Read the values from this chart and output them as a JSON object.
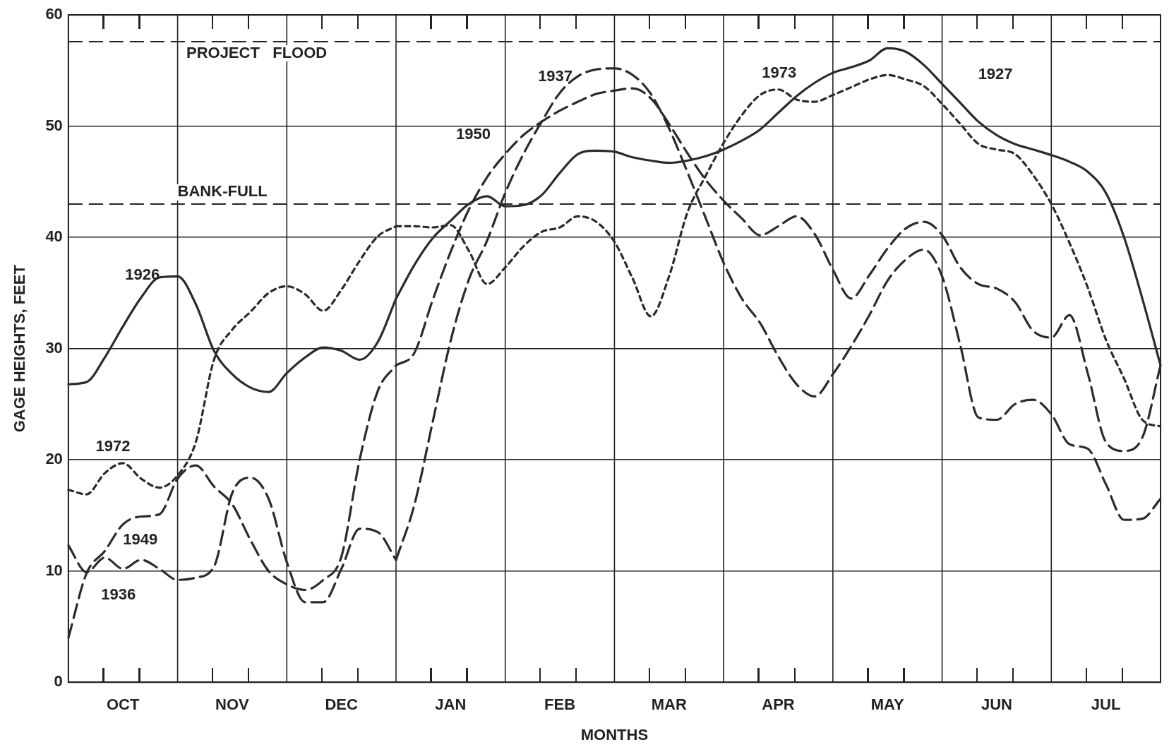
{
  "chart_data": {
    "type": "line",
    "xlabel": "MONTHS",
    "ylabel": "GAGE HEIGHTS, FEET",
    "ylim": [
      0,
      60
    ],
    "yticks": [
      0,
      10,
      20,
      30,
      40,
      50,
      60
    ],
    "categories": [
      null,
      null,
      null,
      "OCT",
      null,
      null,
      null,
      null,
      null,
      "NOV",
      null,
      null,
      null,
      null,
      null,
      "DEC",
      null,
      null,
      null,
      null,
      null,
      "JAN",
      null,
      null,
      null,
      null,
      null,
      "FEB",
      null,
      null,
      null,
      null,
      null,
      "MAR",
      null,
      null,
      null,
      null,
      null,
      "APR",
      null,
      null,
      null,
      null,
      null,
      "MAY",
      null,
      null,
      null,
      null,
      null,
      "JUN",
      null,
      null,
      null,
      null,
      null,
      "JUL",
      null,
      null,
      null
    ],
    "grid": true,
    "ref_lines": [
      {
        "axis": "y",
        "value": 57.6,
        "label": "PROJECT   FLOOD",
        "line_style": "dashed"
      },
      {
        "axis": "y",
        "value": 43,
        "label": "BANK-FULL",
        "line_style": "dashed"
      }
    ],
    "series": [
      {
        "name": "1926",
        "color": "#2b2b2b",
        "line_style": "solid",
        "values": [
          26.8,
          27.0,
          29.2,
          32.0,
          34.6,
          36.4,
          36.5,
          34.0,
          29.8,
          27.7,
          26.5,
          26.1,
          27.8,
          29.2,
          30.1,
          29.8,
          29.0,
          30.6,
          34.5,
          null,
          null,
          null,
          null,
          null,
          null,
          null,
          null,
          null,
          null,
          null,
          null,
          null,
          null,
          null,
          null,
          null,
          null,
          null,
          null,
          null,
          null,
          null,
          null,
          null,
          null,
          null,
          null,
          null,
          null,
          null,
          null,
          null,
          null,
          null,
          null,
          null,
          null,
          null,
          null,
          null,
          null
        ]
      },
      {
        "name": "1927",
        "color": "#2b2b2b",
        "line_style": "solid",
        "values": [
          null,
          null,
          null,
          null,
          null,
          null,
          null,
          null,
          null,
          null,
          null,
          null,
          null,
          null,
          null,
          null,
          null,
          null,
          34.5,
          37.5,
          39.9,
          41.5,
          43.0,
          43.7,
          42.8,
          42.9,
          43.8,
          45.8,
          47.5,
          47.8,
          47.7,
          47.2,
          46.9,
          46.7,
          46.9,
          47.3,
          47.9,
          48.7,
          49.7,
          51.2,
          52.7,
          53.9,
          54.8,
          55.3,
          55.9,
          57.0,
          56.7,
          55.5,
          53.8,
          52.1,
          50.4,
          49.2,
          48.4,
          47.9,
          47.4,
          46.8,
          45.9,
          44.0,
          40.0,
          34.5,
          28.5
        ]
      },
      {
        "name": "1936",
        "color": "#2b2b2b",
        "line_style": "dashed",
        "values": [
          12.3,
          9.9,
          11.2,
          10.2,
          11.0,
          10.2,
          9.2,
          9.4,
          10.4,
          17.0,
          18.4,
          16.5,
          10.8,
          7.2,
          7.2,
          10.2,
          13.8,
          13.5,
          11.0,
          null,
          null,
          null,
          null,
          null,
          null,
          null,
          null,
          null,
          null,
          null,
          null,
          null,
          null,
          null,
          null,
          null,
          null,
          null,
          null,
          null,
          null,
          null,
          null,
          null,
          null,
          null,
          null,
          null,
          null,
          null,
          null,
          null,
          null,
          null,
          null,
          null,
          null,
          null,
          null,
          null,
          null
        ]
      },
      {
        "name": "1937",
        "color": "#2b2b2b",
        "line_style": "dashed",
        "values": [
          null,
          null,
          null,
          null,
          null,
          null,
          null,
          null,
          null,
          null,
          null,
          null,
          null,
          null,
          null,
          null,
          null,
          null,
          11.0,
          15.9,
          23.3,
          30.7,
          36.2,
          39.7,
          44.0,
          47.5,
          50.4,
          53.0,
          54.5,
          55.1,
          55.2,
          54.6,
          52.9,
          49.8,
          45.9,
          41.8,
          37.7,
          34.5,
          32.3,
          29.3,
          26.8,
          25.7,
          27.7,
          30.2,
          33.0,
          36.1,
          38.0,
          38.9,
          36.5,
          30.3,
          23.8,
          23.6,
          25.0,
          25.4,
          24.1,
          21.4,
          21.0,
          17.8,
          14.6,
          14.7,
          16.5
        ]
      },
      {
        "name": "1949",
        "color": "#2b2b2b",
        "line_style": "dashed",
        "values": [
          4.0,
          9.8,
          11.8,
          14.2,
          14.9,
          15.1,
          18.3,
          19.5,
          17.6,
          16.0,
          12.8,
          10.0,
          8.8,
          8.3,
          9.2,
          11.3,
          20.0,
          26.2,
          28.5,
          null,
          null,
          null,
          null,
          null,
          null,
          null,
          null,
          null,
          null,
          null,
          null,
          null,
          null,
          null,
          null,
          null,
          null,
          null,
          null,
          null,
          null,
          null,
          null,
          null,
          null,
          null,
          null,
          null,
          null,
          null,
          null,
          null,
          null,
          null,
          null,
          null,
          null,
          null,
          null,
          null,
          null
        ]
      },
      {
        "name": "1950",
        "color": "#2b2b2b",
        "line_style": "dashed",
        "values": [
          null,
          null,
          null,
          null,
          null,
          null,
          null,
          null,
          null,
          null,
          null,
          null,
          null,
          null,
          null,
          null,
          null,
          null,
          28.5,
          29.6,
          34.3,
          38.7,
          42.5,
          45.4,
          47.5,
          49.2,
          50.4,
          51.4,
          52.2,
          52.9,
          53.2,
          53.4,
          52.5,
          50.2,
          47.6,
          45.2,
          43.3,
          41.7,
          40.2,
          41.0,
          41.9,
          40.3,
          37.1,
          34.5,
          36.6,
          39.0,
          40.8,
          41.4,
          40.2,
          37.3,
          35.8,
          35.4,
          34.2,
          31.6,
          31.0,
          33.0,
          27.8,
          21.6,
          20.8,
          22.0,
          28.5
        ]
      },
      {
        "name": "1972",
        "color": "#2b2b2b",
        "line_style": "dotted",
        "values": [
          17.3,
          16.9,
          18.8,
          19.7,
          18.3,
          17.5,
          18.6,
          21.6,
          29.0,
          31.7,
          33.3,
          35.0,
          35.6,
          34.9,
          33.4,
          35.3,
          37.9,
          40.1,
          41.0,
          null,
          null,
          null,
          null,
          null,
          null,
          null,
          null,
          null,
          null,
          null,
          null,
          null,
          null,
          null,
          null,
          null,
          null,
          null,
          null,
          null,
          null,
          null,
          null,
          null,
          null,
          null,
          null,
          null,
          null,
          null,
          null,
          null,
          null,
          null,
          null,
          null,
          null,
          null,
          null,
          null,
          null
        ]
      },
      {
        "name": "1973",
        "color": "#2b2b2b",
        "line_style": "dotted",
        "values": [
          null,
          null,
          null,
          null,
          null,
          null,
          null,
          null,
          null,
          null,
          null,
          null,
          null,
          null,
          null,
          null,
          null,
          null,
          41.0,
          41.0,
          40.9,
          41.1,
          38.8,
          35.8,
          37.3,
          39.2,
          40.5,
          40.9,
          41.9,
          41.4,
          39.6,
          36.3,
          32.9,
          36.5,
          42.2,
          45.5,
          48.5,
          51.0,
          52.8,
          53.3,
          52.4,
          52.2,
          52.8,
          53.5,
          54.2,
          54.6,
          54.2,
          53.6,
          52.0,
          50.2,
          48.4,
          47.9,
          47.5,
          45.6,
          43.0,
          39.5,
          35.5,
          30.8,
          27.3,
          23.6,
          23.0
        ]
      }
    ]
  }
}
